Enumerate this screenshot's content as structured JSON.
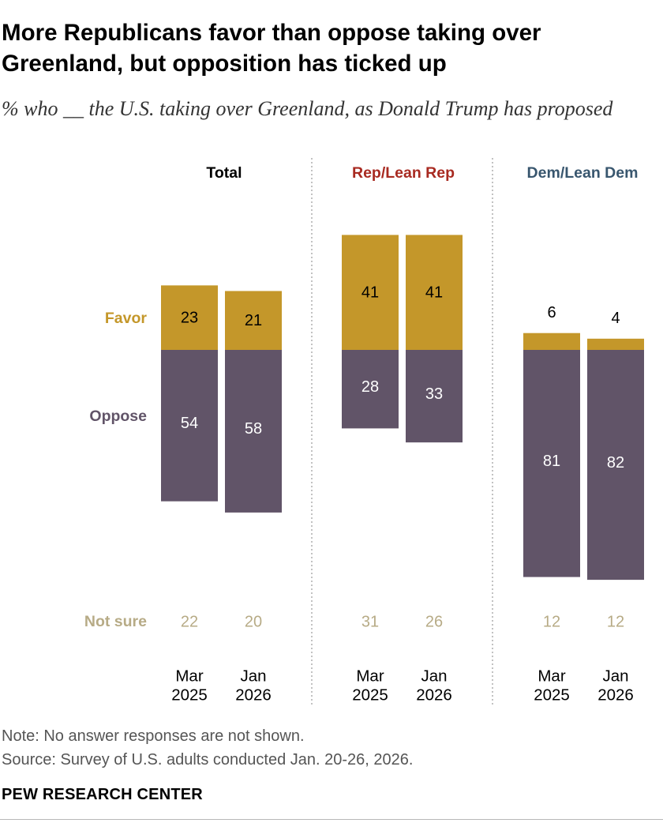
{
  "title": "More Republicans favor than oppose taking over Greenland, but opposition has ticked up",
  "subtitle": "% who __ the U.S. taking over Greenland, as Donald Trump has proposed",
  "note": "Note: No answer responses are not shown.",
  "source": "Source: Survey of U.S. adults conducted Jan. 20-26, 2026.",
  "logo": "PEW RESEARCH CENTER",
  "colors": {
    "favor": "#c4972a",
    "oppose": "#615468",
    "not_sure": "#b7ab86",
    "rep": "#a82a21",
    "dem": "#38566e",
    "divider": "#9a9a9a"
  },
  "chart_data": {
    "type": "bar",
    "stacked": true,
    "row_labels": {
      "favor": "Favor",
      "oppose": "Oppose",
      "not_sure": "Not sure"
    },
    "groups": [
      {
        "name": "Total",
        "color": "#000000",
        "categories": [
          [
            "Mar",
            "2025"
          ],
          [
            "Jan",
            "2026"
          ]
        ],
        "favor": [
          23,
          21
        ],
        "oppose": [
          54,
          58
        ],
        "not_sure": [
          22,
          20
        ]
      },
      {
        "name": "Rep/Lean Rep",
        "color": "#a82a21",
        "categories": [
          [
            "Mar",
            "2025"
          ],
          [
            "Jan",
            "2026"
          ]
        ],
        "favor": [
          41,
          41
        ],
        "oppose": [
          28,
          33
        ],
        "not_sure": [
          31,
          26
        ]
      },
      {
        "name": "Dem/Lean Dem",
        "color": "#38566e",
        "categories": [
          [
            "Mar",
            "2025"
          ],
          [
            "Jan",
            "2026"
          ]
        ],
        "favor": [
          6,
          4
        ],
        "oppose": [
          81,
          82
        ],
        "not_sure": [
          12,
          12
        ]
      }
    ],
    "series": [
      {
        "name": "Favor",
        "color": "#c4972a"
      },
      {
        "name": "Oppose",
        "color": "#615468"
      }
    ],
    "legend": "inline-left"
  }
}
